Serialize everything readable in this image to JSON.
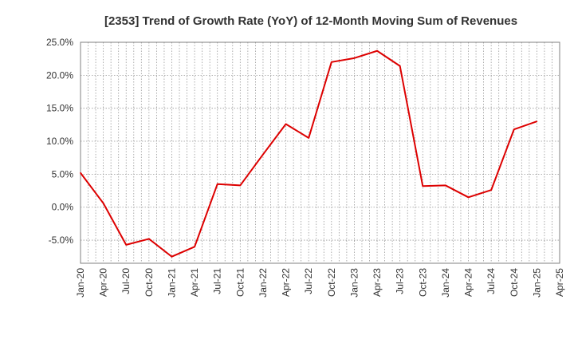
{
  "chart_data": {
    "type": "line",
    "title": "[2353]  Trend of Growth Rate (YoY) of 12-Month Moving Sum of Revenues",
    "xlabel": "",
    "ylabel": "",
    "x_tick_labels": [
      "Jan-20",
      "Apr-20",
      "Jul-20",
      "Oct-20",
      "Jan-21",
      "Apr-21",
      "Jul-21",
      "Oct-21",
      "Jan-22",
      "Apr-22",
      "Jul-22",
      "Oct-22",
      "Jan-23",
      "Apr-23",
      "Jul-23",
      "Oct-23",
      "Jan-24",
      "Apr-24",
      "Jul-24",
      "Oct-24",
      "Jan-25",
      "Apr-25"
    ],
    "y_tick_labels": [
      "25.0%",
      "20.0%",
      "15.0%",
      "10.0%",
      "5.0%",
      "0.0%",
      "-5.0%"
    ],
    "y_ticks": [
      25,
      20,
      15,
      10,
      5,
      0,
      -5
    ],
    "ylim": [
      -8.5,
      25
    ],
    "y_unit": "%",
    "grid": true,
    "line_color": "#dd0000",
    "series": [
      {
        "x": [
          "Jan-20",
          "Apr-20",
          "Jul-20",
          "Oct-20",
          "Jan-21",
          "Apr-21",
          "Jul-21",
          "Oct-21",
          "Jan-22",
          "Apr-22",
          "Jul-22",
          "Oct-22",
          "Jan-23",
          "Apr-23",
          "Jul-23",
          "Oct-23",
          "Jan-24",
          "Apr-24",
          "Jul-24",
          "Oct-24",
          "Jan-25"
        ],
        "values": [
          5.2,
          0.6,
          -5.7,
          -4.8,
          -7.5,
          -6.0,
          3.5,
          3.3,
          8.0,
          12.6,
          10.5,
          22.0,
          22.6,
          23.7,
          21.4,
          3.2,
          3.3,
          1.5,
          2.6,
          11.8,
          13.0
        ]
      }
    ]
  }
}
